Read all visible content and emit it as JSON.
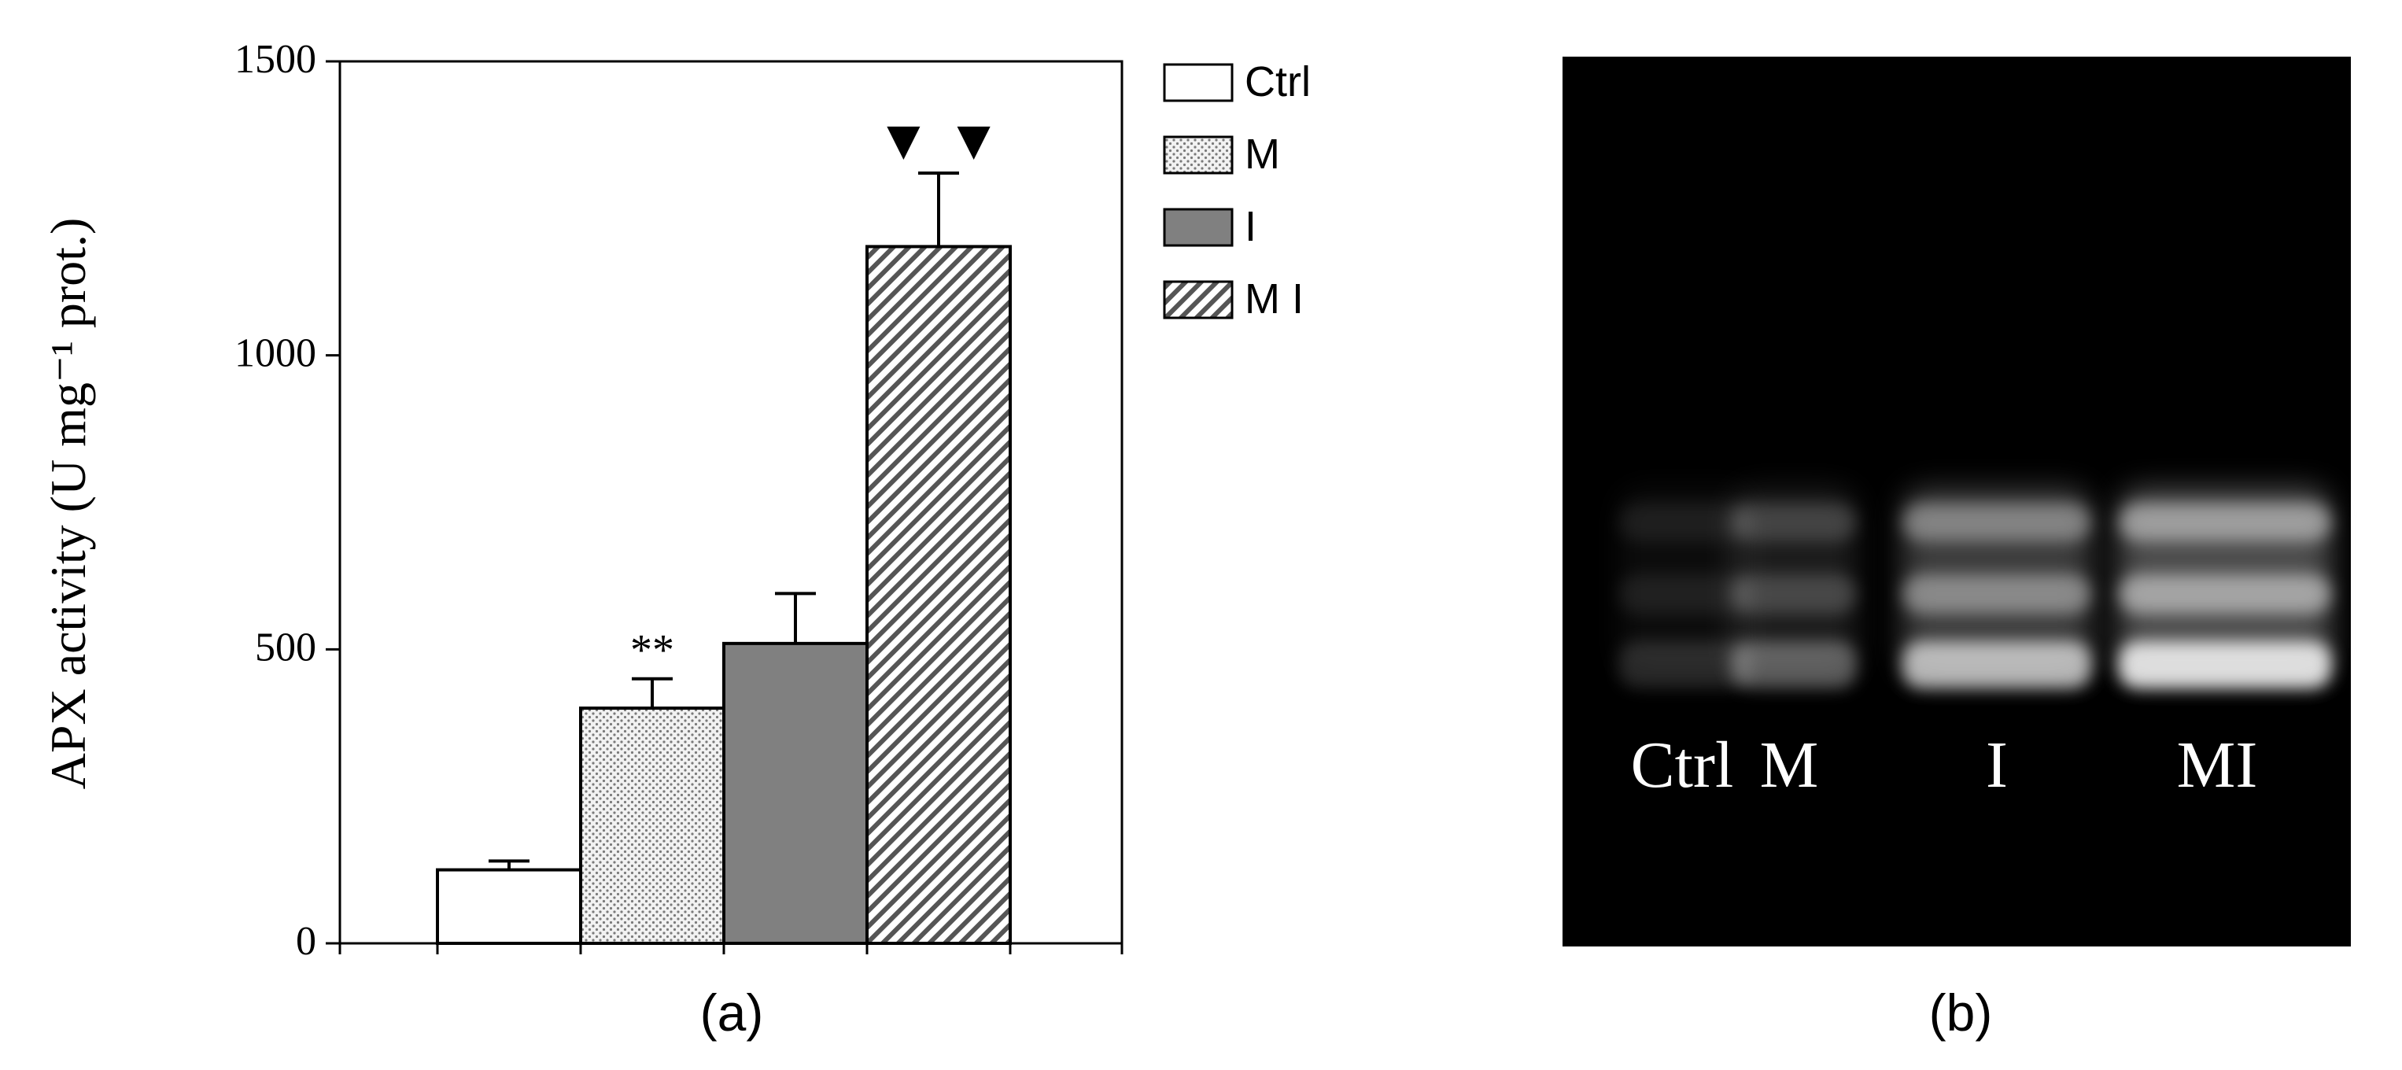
{
  "chart_data": [
    {
      "type": "bar",
      "panel_label": "(a)",
      "ylabel": "APX activity (U mg⁻¹ prot.)",
      "xlabel": "",
      "ylim": [
        0,
        1500
      ],
      "yticks": [
        0,
        500,
        1000,
        1500
      ],
      "categories": [
        "Ctrl",
        "M",
        "I",
        "M I"
      ],
      "values": [
        125,
        400,
        510,
        1185
      ],
      "errors": [
        15,
        50,
        85,
        125
      ],
      "annotations": [
        "",
        "**",
        "",
        "▼ ▼"
      ],
      "legend": {
        "position": "right",
        "entries": [
          {
            "label": "Ctrl",
            "fill": "white"
          },
          {
            "label": "M",
            "fill": "dotted"
          },
          {
            "label": "I",
            "fill": "gray"
          },
          {
            "label": "M I",
            "fill": "hatched"
          }
        ]
      },
      "grid": false
    }
  ],
  "gel": {
    "panel_label": "(b)",
    "background": "#000000",
    "lanes": [
      {
        "label": "Ctrl",
        "intensity": 0.15
      },
      {
        "label": "M",
        "intensity": 0.35
      },
      {
        "label": "I",
        "intensity": 0.75
      },
      {
        "label": "MI",
        "intensity": 0.95
      }
    ]
  },
  "colors": {
    "bar_ctrl": "#ffffff",
    "bar_m_dots": "#7a7a7a",
    "bar_i": "#808080",
    "bar_mi_hatch": "#555555",
    "axis": "#000000",
    "gel_band": "#e6e6e6"
  }
}
